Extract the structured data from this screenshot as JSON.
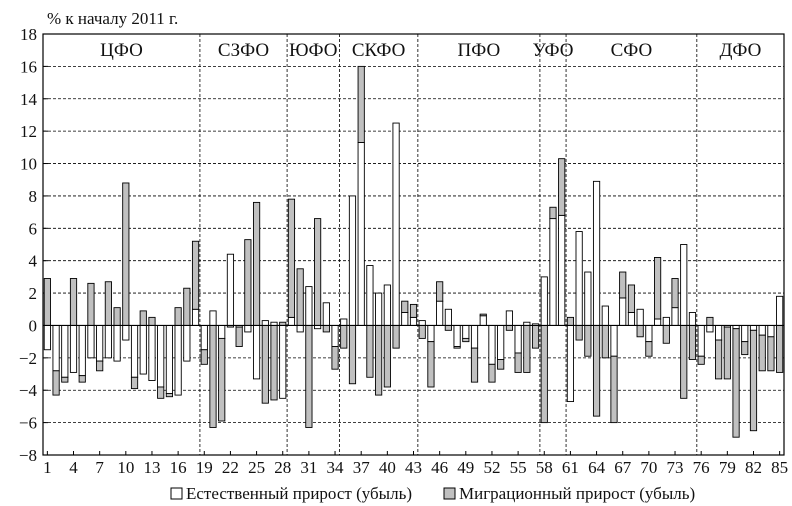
{
  "chart_data": {
    "type": "bar",
    "title": "",
    "ylabel": "% к началу 2011 г.",
    "xlabel": "",
    "ylim": [
      -8,
      18
    ],
    "yticks": [
      -8,
      -6,
      -4,
      -2,
      0,
      2,
      4,
      6,
      8,
      10,
      12,
      14,
      16,
      18
    ],
    "xlim": [
      0,
      85
    ],
    "xticks": [
      1,
      4,
      7,
      10,
      13,
      16,
      19,
      22,
      25,
      28,
      31,
      34,
      37,
      40,
      43,
      46,
      49,
      52,
      55,
      58,
      61,
      64,
      67,
      70,
      73,
      76,
      79,
      82,
      85
    ],
    "grid": true,
    "stacked": true,
    "legend_position": "bottom",
    "regions": [
      {
        "label": "ЦФО",
        "from": 0,
        "to": 18
      },
      {
        "label": "СЗФО",
        "from": 18,
        "to": 28
      },
      {
        "label": "ЮФО",
        "from": 28,
        "to": 34
      },
      {
        "label": "СКФО",
        "from": 34,
        "to": 43
      },
      {
        "label": "ПФО",
        "from": 43,
        "to": 57
      },
      {
        "label": "УФО",
        "from": 57,
        "to": 60
      },
      {
        "label": "СФО",
        "from": 60,
        "to": 75
      },
      {
        "label": "ДФО",
        "from": 75,
        "to": 85
      }
    ],
    "series": [
      {
        "name": "Естественный прирост (убыль)",
        "color": "#ffffff",
        "values": [
          -1.5,
          -2.8,
          -3.2,
          -2.9,
          -3.1,
          -2.0,
          -2.2,
          -2.0,
          -2.2,
          -0.9,
          -3.2,
          -3.0,
          -3.4,
          -3.8,
          -4.2,
          -4.3,
          -2.2,
          1.0,
          -1.5,
          0.9,
          -0.8,
          4.4,
          -0.1,
          -0.4,
          -3.3,
          0.3,
          0.2,
          -4.5,
          0.5,
          -0.4,
          2.4,
          -0.2,
          1.4,
          -1.3,
          0.4,
          8.0,
          11.3,
          3.7,
          2.0,
          2.5,
          12.5,
          0.8,
          0.5,
          0.3,
          -1.0,
          1.5,
          1.0,
          -1.3,
          -0.8,
          -1.4,
          0.6,
          -2.4,
          -2.1,
          0.9,
          -1.7,
          0.2,
          0.1,
          3.0,
          6.6,
          6.8,
          -4.7,
          5.8,
          3.3,
          8.9,
          1.2,
          -1.9,
          1.7,
          0.8,
          1.0,
          -1.0,
          0.4,
          0.5,
          1.1,
          5.0,
          0.8,
          -1.9,
          -0.4,
          -0.9,
          -0.1,
          -0.2,
          -1.0,
          -0.3,
          -0.6,
          -0.7,
          1.8
        ]
      },
      {
        "name": "Миграционный прирост (убыль)",
        "color": "#c0c0c0",
        "values": [
          2.9,
          -1.5,
          -0.3,
          2.9,
          -0.4,
          2.6,
          -0.6,
          2.7,
          1.1,
          8.8,
          -0.7,
          0.9,
          0.5,
          -0.7,
          -0.2,
          1.1,
          2.3,
          4.2,
          -0.9,
          -6.3,
          -5.1,
          -0.1,
          -1.2,
          5.3,
          7.6,
          -4.8,
          -4.6,
          0.2,
          7.3,
          3.5,
          -6.3,
          6.6,
          -0.4,
          -1.4,
          -1.4,
          -3.6,
          4.7,
          -3.2,
          -4.3,
          -3.8,
          -1.4,
          0.7,
          0.8,
          -0.8,
          -2.8,
          1.2,
          -0.3,
          -0.1,
          -0.2,
          -2.1,
          0.1,
          -1.1,
          -0.6,
          -0.3,
          -1.2,
          -2.9,
          -1.4,
          -6.0,
          0.7,
          3.5,
          0.5,
          -0.9,
          -1.9,
          -5.6,
          -2.0,
          -4.1,
          1.6,
          1.7,
          -0.7,
          -0.9,
          3.8,
          -1.1,
          1.8,
          -4.5,
          -2.1,
          -0.5,
          0.5,
          -2.4,
          -3.2,
          -6.7,
          -0.8,
          -6.2,
          -2.2,
          -2.1,
          -2.9
        ]
      }
    ]
  }
}
